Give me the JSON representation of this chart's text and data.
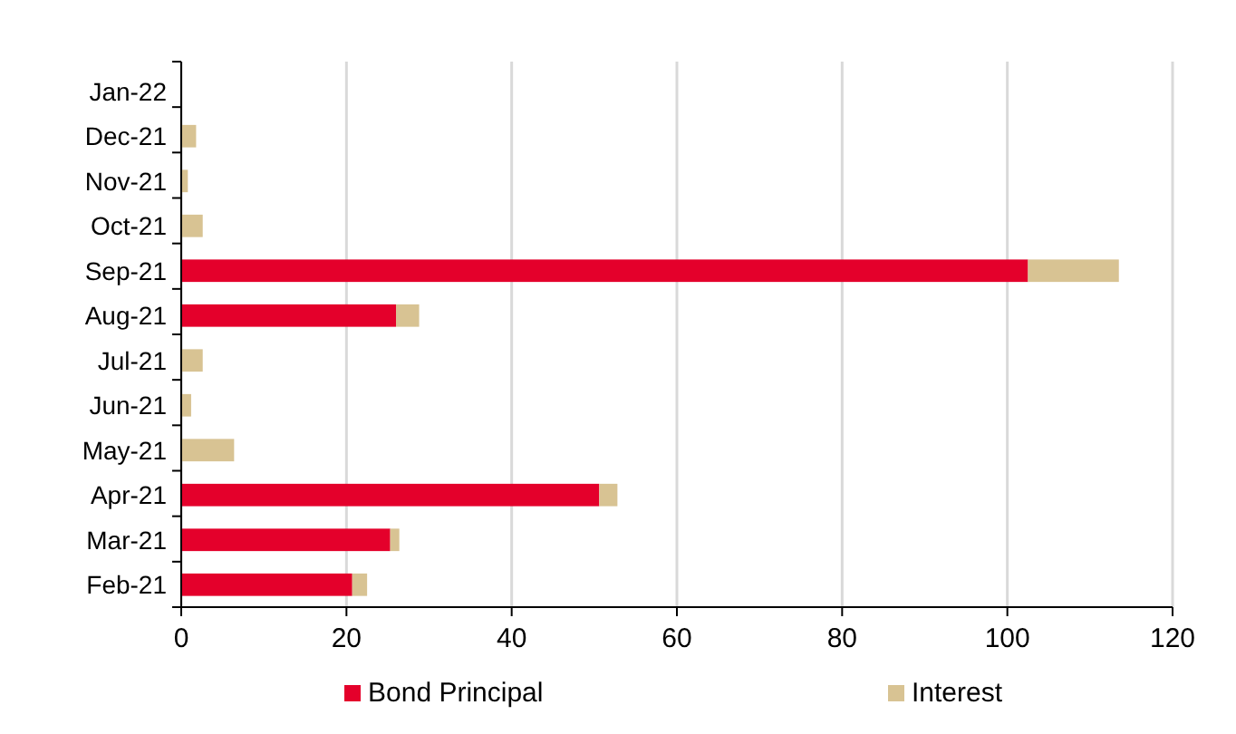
{
  "chart_data": {
    "type": "bar",
    "orientation": "horizontal",
    "stacked": true,
    "categories": [
      "Jan-22",
      "Dec-21",
      "Nov-21",
      "Oct-21",
      "Sep-21",
      "Aug-21",
      "Jul-21",
      "Jun-21",
      "May-21",
      "Apr-21",
      "Mar-21",
      "Feb-21"
    ],
    "series": [
      {
        "name": "Bond Principal",
        "color": "#e4002b",
        "values": [
          0,
          0,
          0,
          0,
          102.5,
          26.0,
          0,
          0,
          0,
          50.6,
          25.3,
          20.7
        ]
      },
      {
        "name": "Interest",
        "color": "#d8c393",
        "values": [
          0,
          1.8,
          0.8,
          2.6,
          11.0,
          2.8,
          2.6,
          1.2,
          6.4,
          2.2,
          1.1,
          1.8
        ]
      }
    ],
    "xlim": [
      0,
      120
    ],
    "xticks": [
      0,
      20,
      40,
      60,
      80,
      100,
      120
    ],
    "grid": "x",
    "legend": "bottom"
  }
}
